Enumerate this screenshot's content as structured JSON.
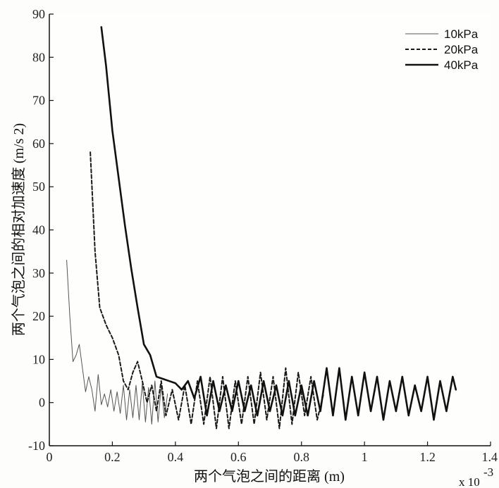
{
  "chart_data": {
    "type": "line",
    "title": "",
    "xlabel": "两个气泡之间的距离 (m)",
    "ylabel": "两个气泡之间的相对加速度 (m/s²)",
    "ylabel_display": "两个气泡之间的相对加速度 (m/s  2)",
    "x_exponent_label": "x 10",
    "x_exponent_power": "-3",
    "xlim": [
      0,
      1.4
    ],
    "ylim": [
      -10,
      90
    ],
    "x_ticks": [
      0,
      0.2,
      0.4,
      0.6,
      0.8,
      1,
      1.2,
      1.4
    ],
    "x_tick_labels": [
      "0",
      "0.2",
      "0.4",
      "0.6",
      "0.8",
      "1",
      "1.2",
      "1.4"
    ],
    "y_ticks": [
      -10,
      0,
      10,
      20,
      30,
      40,
      50,
      60,
      70,
      80,
      90
    ],
    "y_tick_labels": [
      "-10",
      "0",
      "10",
      "20",
      "30",
      "40",
      "50",
      "60",
      "70",
      "80",
      "90"
    ],
    "grid": false,
    "legend_position": "top-right",
    "series": [
      {
        "name": "10kPa",
        "style": "thin-solid",
        "x": [
          0.055,
          0.065,
          0.075,
          0.085,
          0.095,
          0.105,
          0.115,
          0.125,
          0.135,
          0.145,
          0.155,
          0.165,
          0.175,
          0.185,
          0.195,
          0.205,
          0.215,
          0.225,
          0.235,
          0.245,
          0.255,
          0.265,
          0.275,
          0.285,
          0.295,
          0.305,
          0.315,
          0.325,
          0.335,
          0.345,
          0.355,
          0.365,
          0.375
        ],
        "y": [
          33,
          20,
          9.5,
          11,
          13.5,
          8,
          2.5,
          6,
          3,
          -2,
          6.5,
          -0.5,
          2,
          -1,
          3,
          -2,
          2.5,
          -2.5,
          4,
          -4,
          3,
          -3.5,
          4,
          -4,
          4.5,
          -4.5,
          3.5,
          -5,
          5,
          -4.5,
          4,
          -3.5,
          2
        ]
      },
      {
        "name": "20kPa",
        "style": "dashed",
        "x": [
          0.13,
          0.145,
          0.16,
          0.18,
          0.2,
          0.22,
          0.235,
          0.25,
          0.265,
          0.28,
          0.295,
          0.31,
          0.325,
          0.34,
          0.355,
          0.37,
          0.39,
          0.41,
          0.43,
          0.45,
          0.47,
          0.49,
          0.51,
          0.53,
          0.55,
          0.57,
          0.59,
          0.61,
          0.63,
          0.65,
          0.67,
          0.69,
          0.71,
          0.73,
          0.75,
          0.77,
          0.79,
          0.81,
          0.83,
          0.85,
          0.87
        ],
        "y": [
          58,
          35,
          22,
          18,
          15,
          11,
          5,
          3,
          7,
          9.5,
          5,
          0,
          4,
          -2,
          5,
          -3,
          3,
          -4,
          4,
          -5,
          5,
          -5,
          6,
          -6,
          6,
          -6,
          5,
          -5,
          6,
          -5,
          7,
          -4,
          6,
          -6,
          8,
          -5,
          7,
          -3,
          6,
          -4,
          2
        ]
      },
      {
        "name": "40kPa",
        "style": "thick-solid",
        "x": [
          0.165,
          0.18,
          0.2,
          0.22,
          0.24,
          0.26,
          0.28,
          0.3,
          0.32,
          0.34,
          0.36,
          0.38,
          0.4,
          0.42,
          0.44,
          0.46,
          0.48,
          0.5,
          0.52,
          0.54,
          0.56,
          0.58,
          0.6,
          0.62,
          0.64,
          0.66,
          0.68,
          0.7,
          0.72,
          0.74,
          0.76,
          0.78,
          0.8,
          0.82,
          0.84,
          0.86,
          0.88,
          0.9,
          0.92,
          0.94,
          0.96,
          0.98,
          1.0,
          1.02,
          1.04,
          1.06,
          1.08,
          1.1,
          1.12,
          1.14,
          1.16,
          1.18,
          1.2,
          1.22,
          1.24,
          1.26,
          1.28,
          1.29
        ],
        "y": [
          87,
          78,
          63,
          52,
          41,
          31,
          22,
          13.5,
          11,
          6,
          5.5,
          5,
          4.5,
          3,
          5,
          1,
          6,
          -3,
          5,
          -2,
          4,
          -2,
          5,
          -2,
          4,
          -3,
          5,
          -2,
          4,
          -3,
          5,
          -3,
          4,
          -3,
          5,
          -2,
          8,
          -3,
          8,
          -4,
          6,
          -3,
          7,
          -2,
          6,
          -4,
          5,
          -2,
          6,
          -3,
          4,
          -2,
          6,
          -4,
          5,
          -2,
          6,
          3
        ]
      }
    ]
  }
}
